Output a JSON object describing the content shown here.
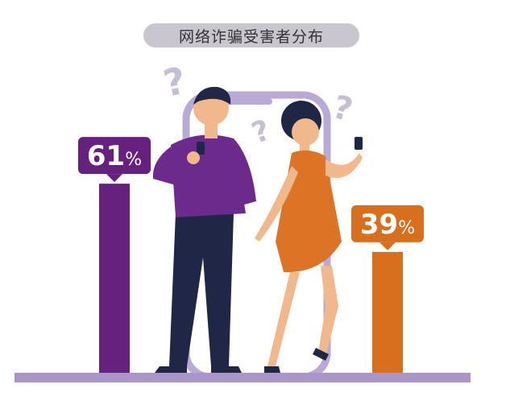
{
  "chart_data": {
    "type": "bar",
    "title": "网络诈骗受害者分布",
    "categories": [
      "",
      ""
    ],
    "values": [
      61,
      39
    ],
    "value_labels": [
      "61",
      "39"
    ],
    "unit": "%",
    "ylim": [
      0,
      100
    ],
    "grid": false,
    "colors": [
      "#66207e",
      "#d86f1f"
    ],
    "baseline_color": "#a995c7",
    "label_box_color_1": "#66207e",
    "label_box_color_2": "#d86f1f"
  },
  "illustration": {
    "icons": [
      "question-mark-icon",
      "question-mark-icon",
      "question-mark-icon",
      "smartphone-icon"
    ]
  }
}
